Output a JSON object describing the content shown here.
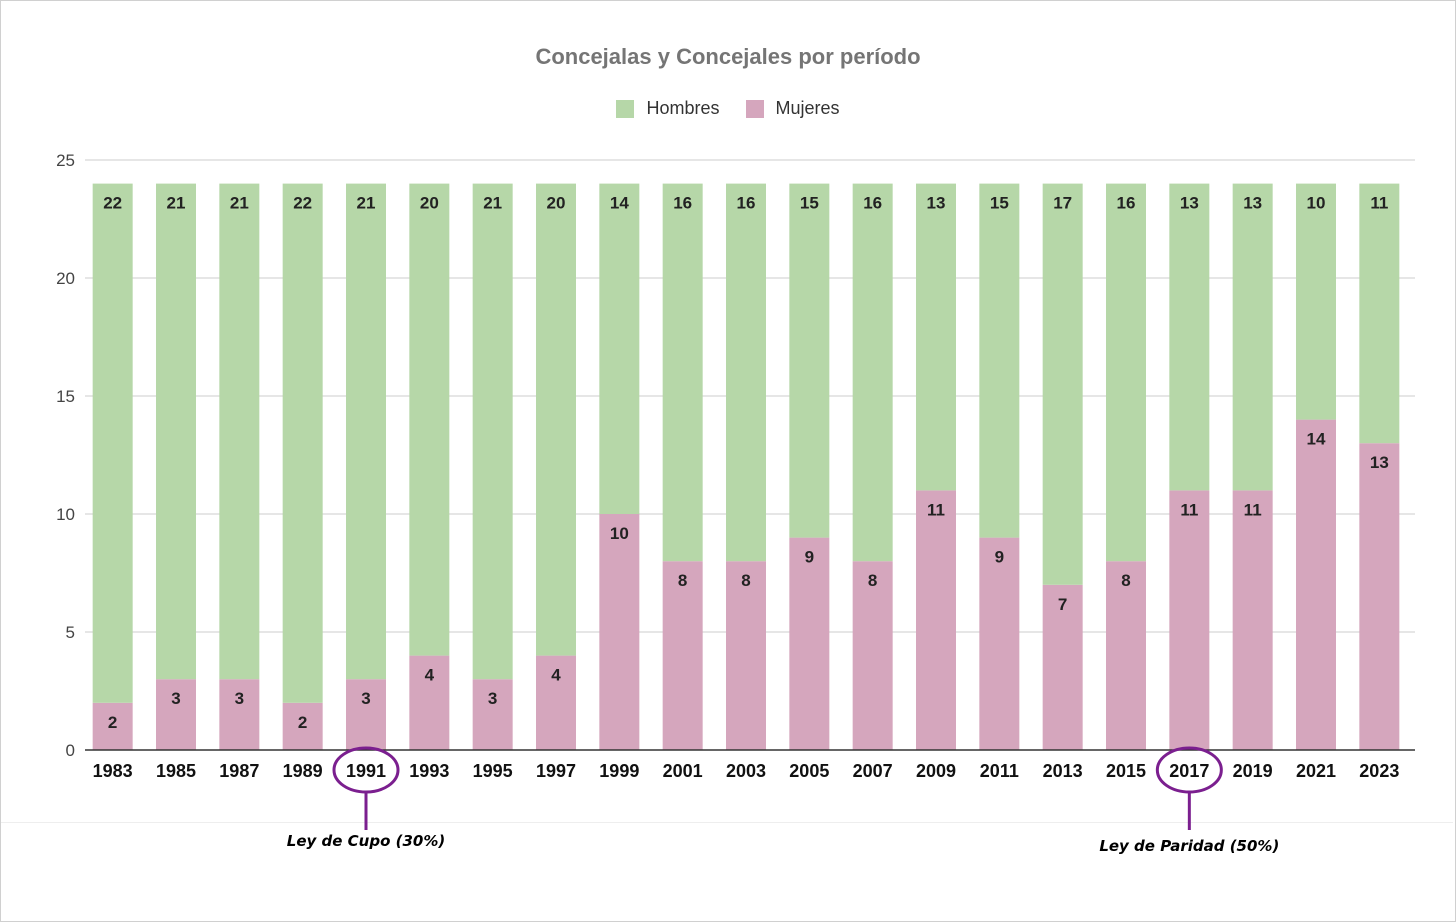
{
  "chart_data": {
    "type": "bar",
    "stacked": true,
    "title": "Concejalas y Concejales por período",
    "xlabel": "",
    "ylabel": "",
    "ylim": [
      0,
      25
    ],
    "yticks": [
      0,
      5,
      10,
      15,
      20,
      25
    ],
    "grid": true,
    "legend_position": "top-center",
    "categories": [
      "1983",
      "1985",
      "1987",
      "1989",
      "1991",
      "1993",
      "1995",
      "1997",
      "1999",
      "2001",
      "2003",
      "2005",
      "2007",
      "2009",
      "2011",
      "2013",
      "2015",
      "2017",
      "2019",
      "2021",
      "2023"
    ],
    "series": [
      {
        "name": "Mujeres",
        "color": "#d5a6bd",
        "values": [
          2,
          3,
          3,
          2,
          3,
          4,
          3,
          4,
          10,
          8,
          8,
          9,
          8,
          11,
          9,
          7,
          8,
          11,
          11,
          14,
          13
        ]
      },
      {
        "name": "Hombres",
        "color": "#b6d7a8",
        "values": [
          22,
          21,
          21,
          22,
          21,
          20,
          21,
          20,
          14,
          16,
          16,
          15,
          16,
          13,
          15,
          17,
          16,
          13,
          13,
          10,
          11
        ]
      }
    ],
    "annotations": [
      {
        "category": "1991",
        "text": "Ley de Cupo (30%)",
        "color": "#7b1f8f"
      },
      {
        "category": "2017",
        "text": "Ley de Paridad (50%)",
        "color": "#7b1f8f"
      }
    ]
  }
}
